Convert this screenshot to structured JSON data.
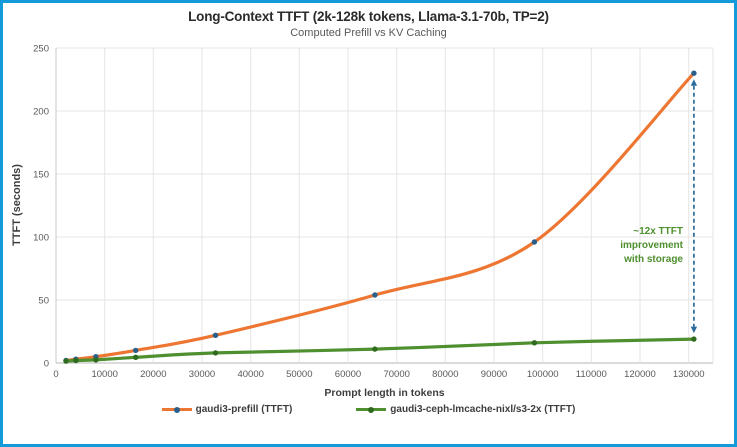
{
  "window": {
    "border_color": "#129AD9",
    "background": "#FFFFFF"
  },
  "chart_data": {
    "type": "line",
    "line_style": "smooth",
    "title": "Long-Context TTFT (2k-128k tokens, Llama-3.1-70b, TP=2)",
    "subtitle": "Computed Prefill vs KV Caching",
    "xlabel": "Prompt length in tokens",
    "ylabel": "TTFT (seconds)",
    "xlim": [
      0,
      135000
    ],
    "ylim": [
      0,
      250
    ],
    "x_ticks": [
      0,
      10000,
      20000,
      30000,
      40000,
      50000,
      60000,
      70000,
      80000,
      90000,
      100000,
      110000,
      120000,
      130000
    ],
    "y_ticks": [
      0,
      50,
      100,
      150,
      200,
      250
    ],
    "grid": true,
    "legend_position": "bottom",
    "x": [
      2048,
      4096,
      8192,
      16384,
      32768,
      65536,
      98304,
      131072
    ],
    "series": [
      {
        "name": "gaudi3-prefill (TTFT)",
        "color": "#ED7632",
        "marker_color": "#2A5F8C",
        "values": [
          2,
          3,
          5,
          10,
          22,
          54,
          96,
          230
        ]
      },
      {
        "name": "gaudi3-ceph-lmcache-nixl/s3-2x (TTFT)",
        "color": "#4E8F2F",
        "marker_color": "#2F6B1F",
        "values": [
          1.5,
          2,
          2.5,
          4.5,
          8,
          11,
          16,
          19
        ]
      }
    ],
    "annotation": {
      "line1": "~12x TTFT",
      "line2": "improvement",
      "line3": "with storage",
      "color": "#4E8F2F",
      "arrow_color": "#2A6C9C",
      "arrow_x": 131072
    }
  }
}
